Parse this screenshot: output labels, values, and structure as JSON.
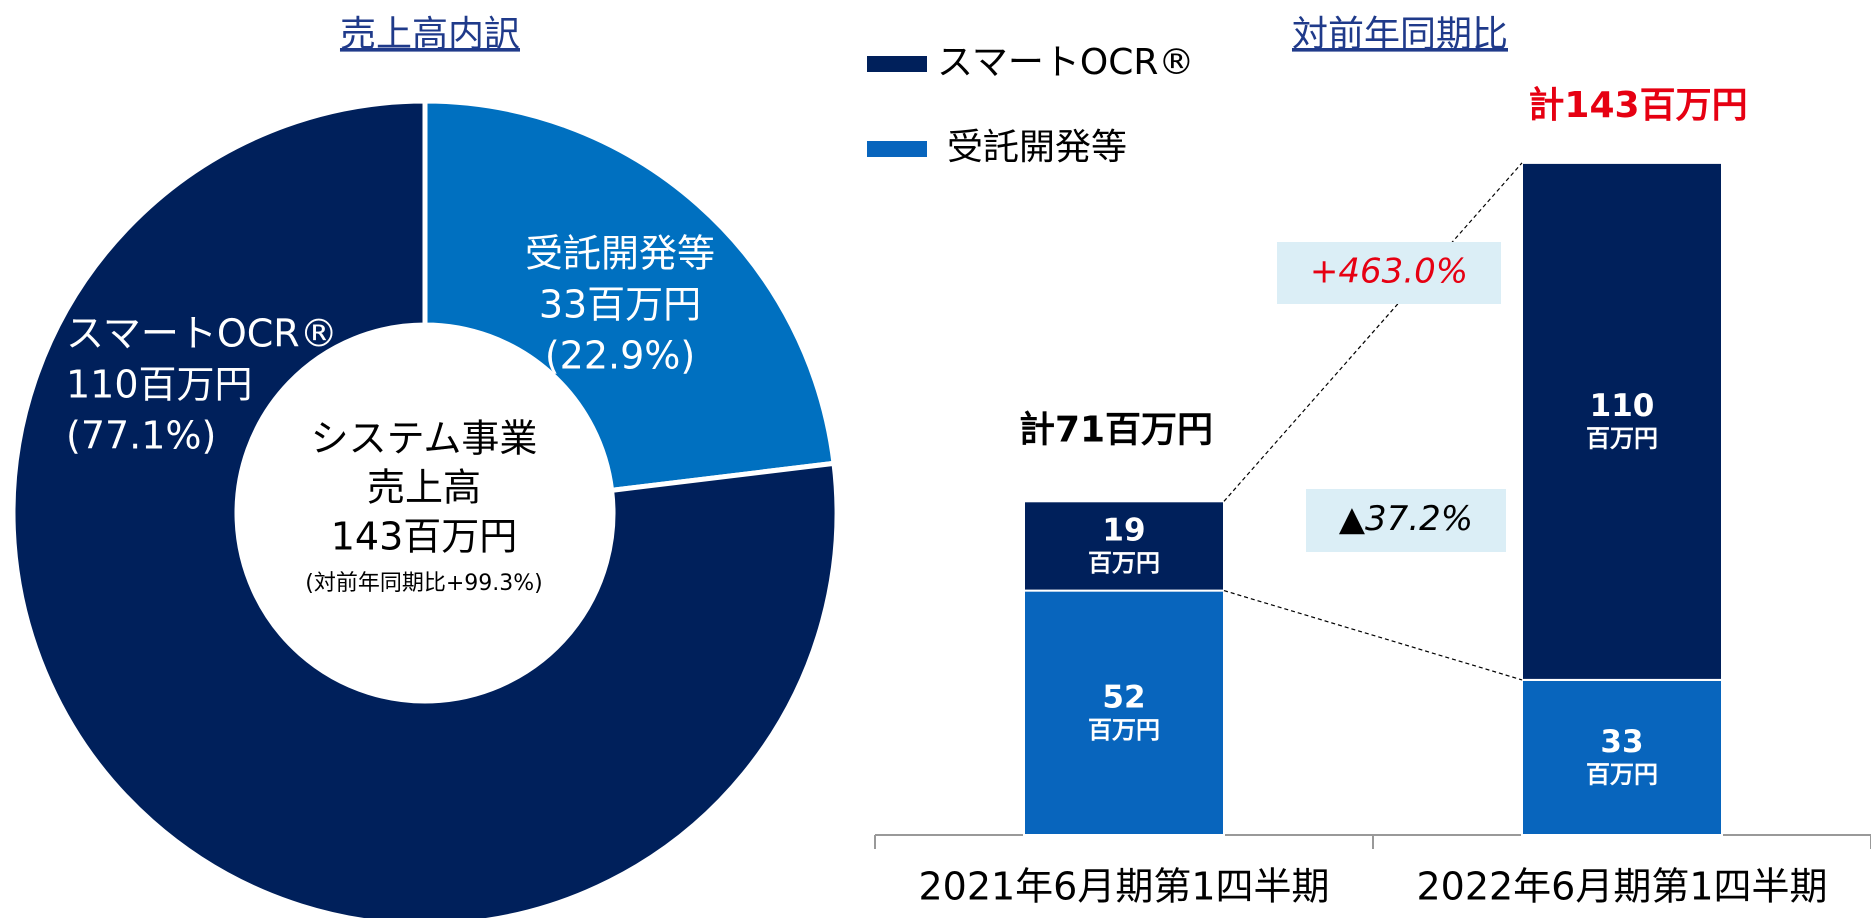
{
  "chart_data": [
    {
      "type": "donut",
      "title": "売上高内訳",
      "categories": [
        "受託開発等",
        "スマートOCR®"
      ],
      "values": [
        33,
        110
      ],
      "value_labels": [
        "33百万円",
        "110百万円"
      ],
      "percent_labels": [
        "(22.9%)",
        "(77.1%)"
      ],
      "colors": [
        "#0070c0",
        "#00205b"
      ],
      "center_label": [
        "システム事業",
        "売上高",
        "143百万円",
        "(対前年同期比+99.3%)"
      ]
    },
    {
      "type": "stacked_bar",
      "title": "対前年同期比",
      "categories": [
        "2021年6月期第1四半期",
        "2022年6月期第1四半期"
      ],
      "series": [
        {
          "name": "受託開発等",
          "color": "#0865bd",
          "values": [
            52,
            33
          ]
        },
        {
          "name": "スマートOCR®",
          "color": "#00205b",
          "values": [
            19,
            110
          ]
        }
      ],
      "unit_label": "百万円",
      "totals": [
        71,
        143
      ],
      "total_labels": [
        "計71百万円",
        "計143百万円"
      ],
      "total_label_colors": [
        "#000000",
        "#e60012"
      ],
      "annotations": [
        {
          "text": "+463.0%",
          "color": "#e60012"
        },
        {
          "text": "▲37.2%",
          "color": "#000000"
        }
      ],
      "legend_position": "top-left"
    }
  ]
}
